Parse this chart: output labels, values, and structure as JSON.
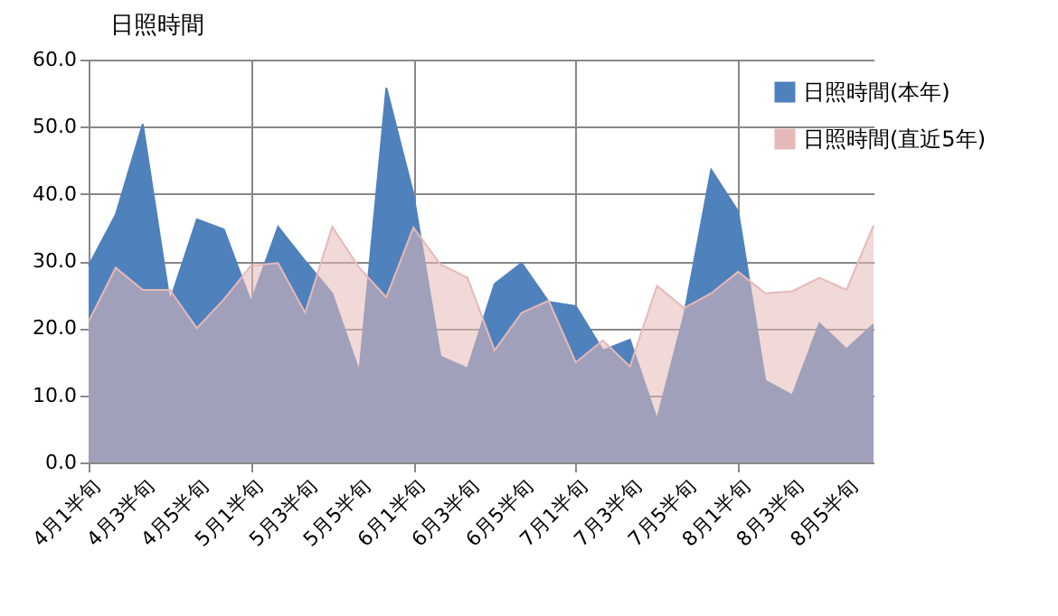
{
  "chart_data": {
    "type": "area",
    "title": "日照時間",
    "categories": [
      "4月1半旬",
      null,
      "4月3半旬",
      null,
      "4月5半旬",
      null,
      "5月1半旬",
      null,
      "5月3半旬",
      null,
      "5月5半旬",
      null,
      "6月1半旬",
      null,
      "6月3半旬",
      null,
      "6月5半旬",
      null,
      "7月1半旬",
      null,
      "7月3半旬",
      null,
      "7月5半旬",
      null,
      "8月1半旬",
      null,
      "8月3半旬",
      null,
      "8月5半旬",
      null
    ],
    "series": [
      {
        "name": "日照時間(本年)",
        "color": "#4f81bd",
        "values": [
          29.3,
          36.9,
          50.4,
          24.0,
          36.2,
          34.7,
          23.9,
          35.1,
          30.0,
          25.2,
          13.5,
          55.8,
          40.0,
          15.8,
          14.0,
          26.6,
          29.7,
          23.9,
          23.3,
          16.7,
          18.3,
          6.4,
          22.0,
          43.6,
          37.4,
          12.2,
          10.0,
          20.7,
          16.9,
          20.6
        ]
      },
      {
        "name": "日照時間(直近5年)",
        "color": "#e6b9b8",
        "values": [
          21.0,
          29.0,
          25.7,
          25.7,
          20.0,
          24.3,
          29.3,
          29.7,
          22.3,
          35.1,
          29.0,
          24.6,
          35.0,
          29.5,
          27.5,
          16.7,
          22.3,
          24.1,
          14.9,
          18.2,
          14.3,
          26.3,
          23.0,
          25.2,
          28.4,
          25.2,
          25.5,
          27.5,
          25.7,
          35.3
        ]
      }
    ],
    "ylim": [
      0,
      60
    ],
    "yticks": [
      {
        "value": 0,
        "label": "0.0"
      },
      {
        "value": 10,
        "label": "10.0"
      },
      {
        "value": 20,
        "label": "20.0"
      },
      {
        "value": 30,
        "label": "30.0"
      },
      {
        "value": 40,
        "label": "40.0"
      },
      {
        "value": 50,
        "label": "50.0"
      },
      {
        "value": 60,
        "label": "60.0"
      }
    ],
    "grid": true,
    "legend": "top right"
  }
}
